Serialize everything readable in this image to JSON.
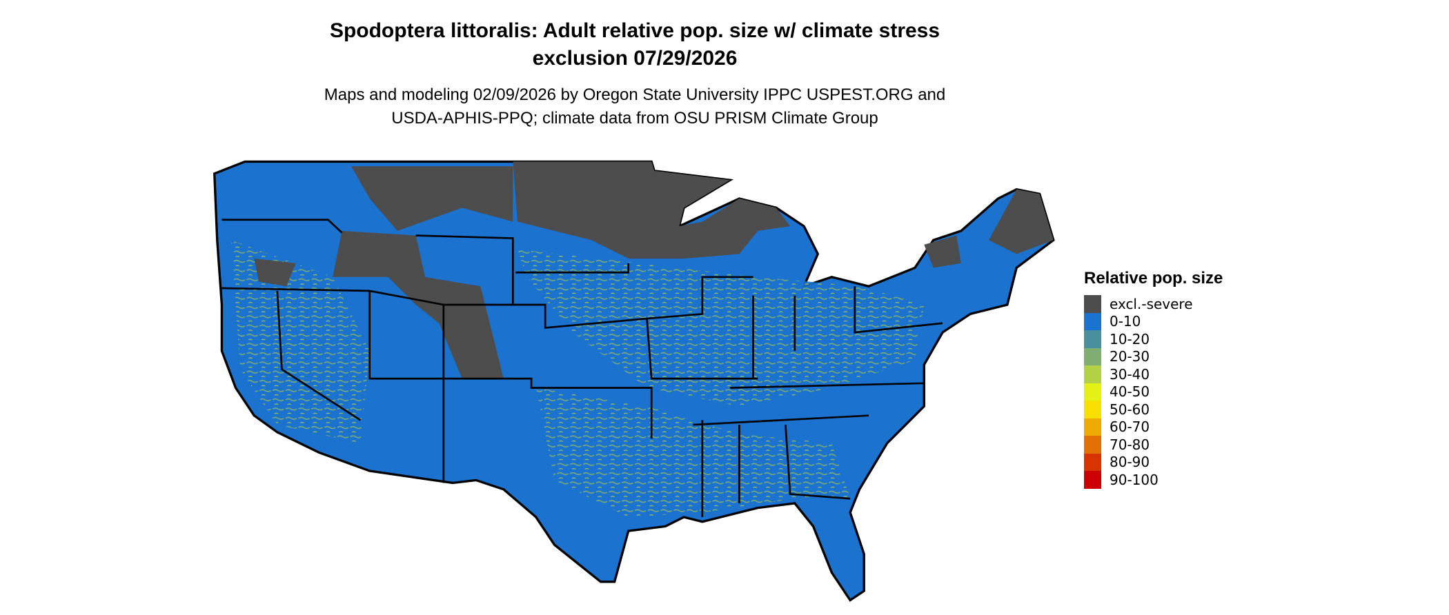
{
  "title": {
    "line1": "Spodoptera littoralis: Adult relative pop. size w/ climate stress",
    "line2": "exclusion 07/29/2026"
  },
  "subtitle": {
    "line1": "Maps and modeling 02/09/2026 by Oregon State University IPPC USPEST.ORG and",
    "line2": "USDA-APHIS-PPQ; climate data from OSU PRISM Climate Group"
  },
  "legend": {
    "title": "Relative pop. size",
    "items": [
      {
        "label": "excl.-severe",
        "color": "#4d4d4d"
      },
      {
        "label": "0-10",
        "color": "#1b72cf"
      },
      {
        "label": "10-20",
        "color": "#4a8f9e"
      },
      {
        "label": "20-30",
        "color": "#7eae72"
      },
      {
        "label": "30-40",
        "color": "#b2d146"
      },
      {
        "label": "40-50",
        "color": "#e5f015"
      },
      {
        "label": "50-60",
        "color": "#f7e000"
      },
      {
        "label": "60-70",
        "color": "#eeaa00"
      },
      {
        "label": "70-80",
        "color": "#e37000"
      },
      {
        "label": "80-90",
        "color": "#d93300"
      },
      {
        "label": "90-100",
        "color": "#cc0000"
      }
    ]
  }
}
